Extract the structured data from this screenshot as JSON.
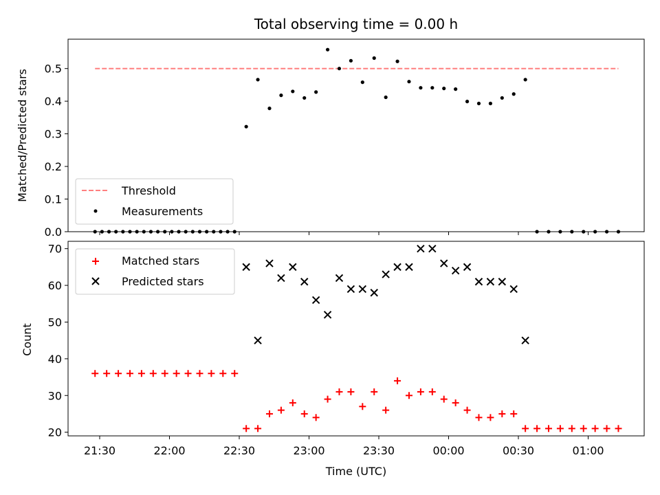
{
  "chart_data": [
    {
      "type": "scatter",
      "title": "Total observing time = 0.00 h",
      "xlabel": "",
      "ylabel": "Matched/Predicted stars",
      "ylim": [
        0,
        0.59
      ],
      "yticks": [
        "0.0",
        "0.1",
        "0.2",
        "0.3",
        "0.4",
        "0.5"
      ],
      "grid": false,
      "legend_position": "lower-left",
      "threshold": {
        "name": "Threshold",
        "value": 0.5,
        "x_start": "21:28",
        "x_end": "01:13",
        "color": "#ff7f7f"
      },
      "series": [
        {
          "name": "Measurements",
          "color": "#000000",
          "x": [
            "21:28",
            "21:31",
            "21:34",
            "21:37",
            "21:40",
            "21:43",
            "21:46",
            "21:49",
            "21:52",
            "21:55",
            "21:58",
            "22:01",
            "22:04",
            "22:07",
            "22:10",
            "22:13",
            "22:16",
            "22:19",
            "22:22",
            "22:25",
            "22:28",
            "22:33",
            "22:38",
            "22:43",
            "22:48",
            "22:53",
            "22:58",
            "23:03",
            "23:08",
            "23:13",
            "23:18",
            "23:23",
            "23:28",
            "23:33",
            "23:38",
            "23:43",
            "23:48",
            "23:53",
            "23:58",
            "00:03",
            "00:08",
            "00:13",
            "00:18",
            "00:23",
            "00:28",
            "00:33",
            "00:38",
            "00:43",
            "00:48",
            "00:53",
            "00:58",
            "01:03",
            "01:08",
            "01:13"
          ],
          "y": [
            0,
            0,
            0,
            0,
            0,
            0,
            0,
            0,
            0,
            0,
            0,
            0,
            0,
            0,
            0,
            0,
            0,
            0,
            0,
            0,
            0,
            0.322,
            0.466,
            0.378,
            0.418,
            0.43,
            0.41,
            0.428,
            0.558,
            0.5,
            0.524,
            0.458,
            0.532,
            0.412,
            0.522,
            0.46,
            0.441,
            0.441,
            0.439,
            0.437,
            0.399,
            0.393,
            0.393,
            0.41,
            0.422,
            0.466,
            0,
            0,
            0,
            0,
            0,
            0,
            0,
            0
          ]
        }
      ]
    },
    {
      "type": "scatter",
      "title": "",
      "xlabel": "Time (UTC)",
      "ylabel": "Count",
      "ylim": [
        19,
        72
      ],
      "yticks": [
        "20",
        "30",
        "40",
        "50",
        "60",
        "70"
      ],
      "xticks": [
        "21:30",
        "22:00",
        "22:30",
        "23:00",
        "23:30",
        "00:00",
        "00:30",
        "01:00"
      ],
      "grid": false,
      "legend_position": "upper-left",
      "series": [
        {
          "name": "Matched stars",
          "marker": "plus",
          "color": "#ff0000",
          "x": [
            "21:28",
            "21:33",
            "21:38",
            "21:43",
            "21:48",
            "21:53",
            "21:58",
            "22:03",
            "22:08",
            "22:13",
            "22:18",
            "22:23",
            "22:28",
            "22:33",
            "22:38",
            "22:43",
            "22:48",
            "22:53",
            "22:58",
            "23:03",
            "23:08",
            "23:13",
            "23:18",
            "23:23",
            "23:28",
            "23:33",
            "23:38",
            "23:43",
            "23:48",
            "23:53",
            "23:58",
            "00:03",
            "00:08",
            "00:13",
            "00:18",
            "00:23",
            "00:28",
            "00:33",
            "00:38",
            "00:43",
            "00:48",
            "00:53",
            "00:58",
            "01:03",
            "01:08",
            "01:13"
          ],
          "y": [
            36,
            36,
            36,
            36,
            36,
            36,
            36,
            36,
            36,
            36,
            36,
            36,
            36,
            21,
            21,
            25,
            26,
            28,
            25,
            24,
            29,
            31,
            31,
            27,
            31,
            26,
            34,
            30,
            31,
            31,
            29,
            28,
            26,
            24,
            24,
            25,
            25,
            21,
            21,
            21,
            21,
            21,
            21,
            21,
            21,
            21
          ]
        },
        {
          "name": "Predicted stars",
          "marker": "x",
          "color": "#000000",
          "x": [
            "22:33",
            "22:38",
            "22:43",
            "22:48",
            "22:53",
            "22:58",
            "23:03",
            "23:08",
            "23:13",
            "23:18",
            "23:23",
            "23:28",
            "23:33",
            "23:38",
            "23:43",
            "23:48",
            "23:53",
            "23:58",
            "00:03",
            "00:08",
            "00:13",
            "00:18",
            "00:23",
            "00:28",
            "00:33"
          ],
          "y": [
            65,
            45,
            66,
            62,
            65,
            61,
            56,
            52,
            62,
            59,
            59,
            58,
            63,
            65,
            65,
            70,
            70,
            66,
            64,
            65,
            61,
            61,
            61,
            59,
            45
          ]
        }
      ]
    }
  ]
}
